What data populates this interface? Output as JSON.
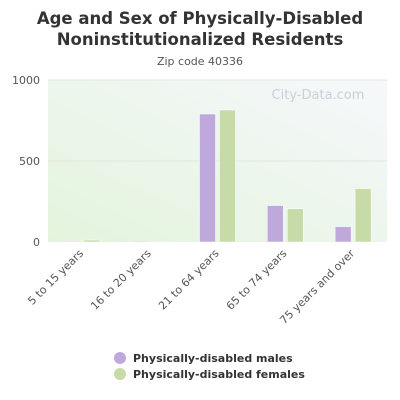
{
  "header": {
    "title_line1": "Age and Sex of Physically-Disabled",
    "title_line2": "Noninstitutionalized Residents",
    "subtitle": "Zip code 40336"
  },
  "watermark": "City-Data.com",
  "colors": {
    "males": "#bfa8dc",
    "females": "#c7dba8",
    "plot_bg_left": "#e3f4dc",
    "plot_bg_right": "#f6f8fc"
  },
  "chart_data": {
    "type": "bar",
    "title": "Age and Sex of Physically-Disabled Noninstitutionalized Residents",
    "subtitle": "Zip code 40336",
    "categories": [
      "5 to 15 years",
      "16 to 20 years",
      "21 to 64 years",
      "65 to 74 years",
      "75 years and over"
    ],
    "series": [
      {
        "name": "Physically-disabled males",
        "values": [
          5,
          3,
          790,
          225,
          95
        ]
      },
      {
        "name": "Physically-disabled females",
        "values": [
          12,
          3,
          815,
          205,
          330
        ]
      }
    ],
    "ylim": [
      0,
      1000
    ],
    "yticks": [
      0,
      500,
      1000
    ],
    "grid": true,
    "legend": "bottom"
  }
}
